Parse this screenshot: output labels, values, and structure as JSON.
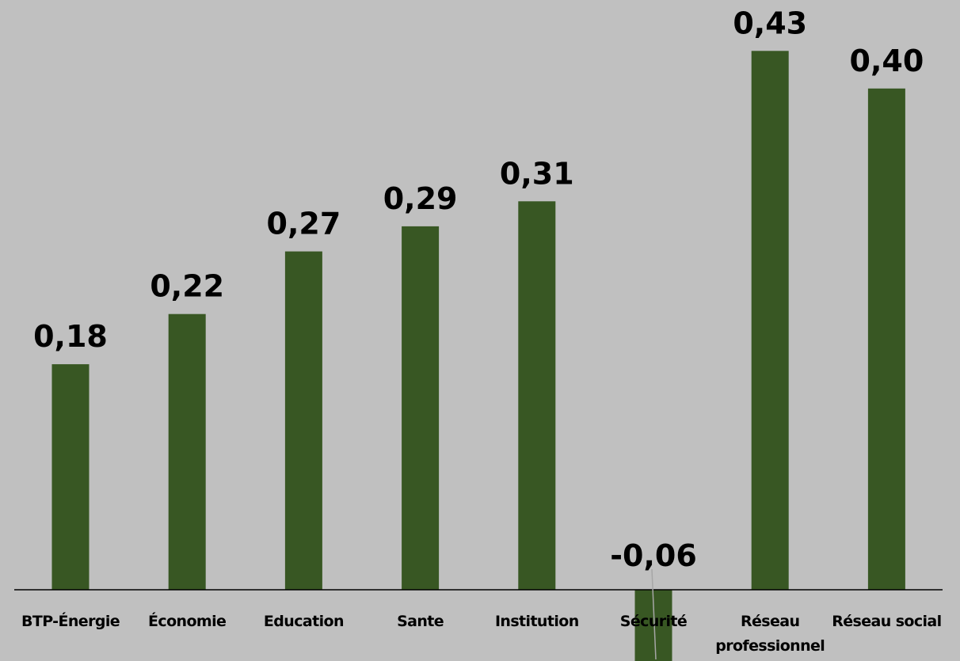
{
  "chart_data": {
    "type": "bar",
    "categories": [
      [
        "BTP-Énergie"
      ],
      [
        "Économie"
      ],
      [
        "Education"
      ],
      [
        "Sante"
      ],
      [
        "Institution"
      ],
      [
        "Sécurité"
      ],
      [
        "Réseau",
        "professionnel"
      ],
      [
        "Réseau social"
      ]
    ],
    "values": [
      0.18,
      0.22,
      0.27,
      0.29,
      0.31,
      -0.06,
      0.43,
      0.4
    ],
    "data_labels": [
      "0,18",
      "0,22",
      "0,27",
      "0,29",
      "0,31",
      "-0,06",
      "0,43",
      "0,40"
    ],
    "title": "",
    "xlabel": "",
    "ylabel": "",
    "grid": false,
    "legend": "none",
    "bar_color": "#385723",
    "axis_color": "#000000",
    "background": "#c0c0c0"
  }
}
